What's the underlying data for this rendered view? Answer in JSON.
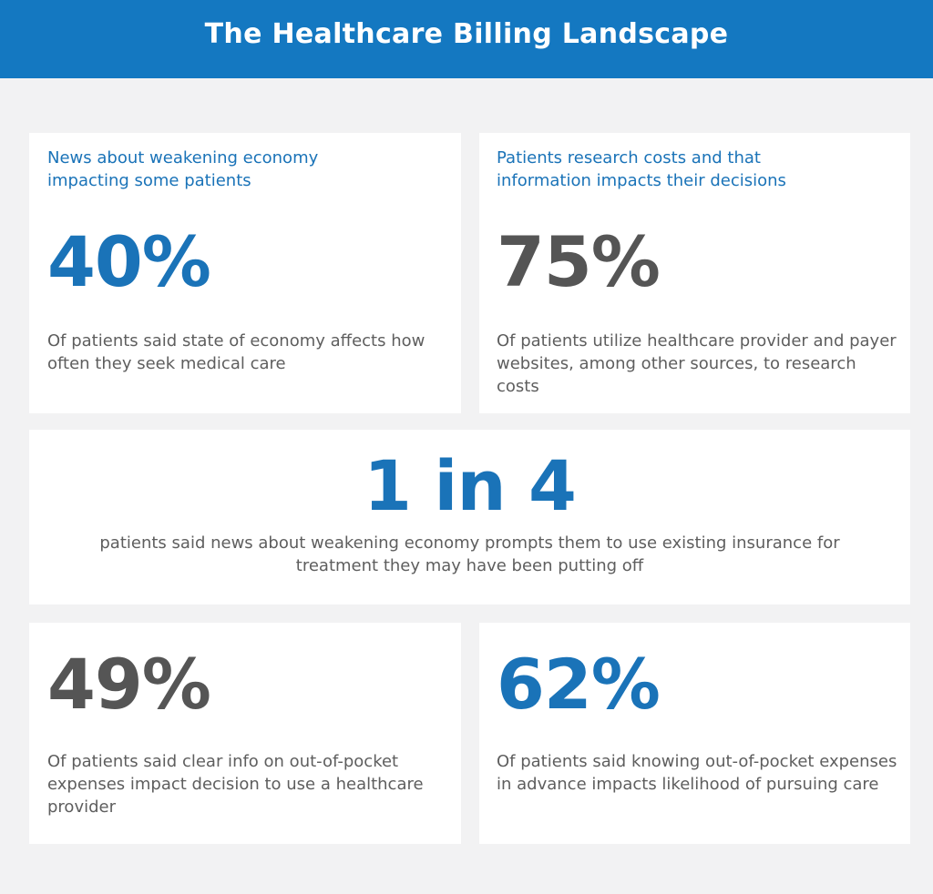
{
  "header": {
    "title": "The Healthcare Billing Landscape"
  },
  "cards": {
    "economy": {
      "heading": "News about weakening economy impacting some patients",
      "stat": "40%",
      "description": "Of patients said state of economy affects how often they seek medical care"
    },
    "research": {
      "heading": "Patients research costs and that information impacts their decisions",
      "stat": "75%",
      "description": "Of patients utilize healthcare provider and payer websites, among other sources, to research costs"
    },
    "one_in_four": {
      "stat": "1 in 4",
      "description": "patients said news about weakening economy prompts them to use existing insurance for treatment they may have been putting off"
    },
    "clear_info": {
      "stat": "49%",
      "description": "Of patients said clear info on out-of-pocket expenses impact decision to use a healthcare provider"
    },
    "knowing": {
      "stat": "62%",
      "description": "Of patients said knowing out-of-pocket expenses in advance impacts likelihood of pursuing care"
    }
  },
  "colors": {
    "brand_blue": "#1478c1",
    "stat_blue": "#1a73b8",
    "stat_gray": "#555555",
    "text_gray": "#5e5e5e",
    "background": "#f2f2f3"
  }
}
